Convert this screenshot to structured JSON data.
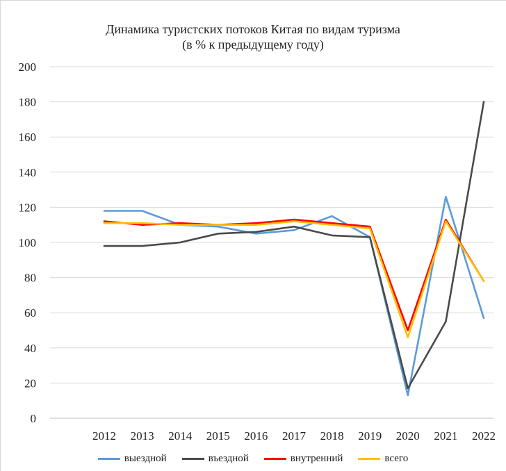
{
  "chart_data": {
    "type": "line",
    "title": "Динамика туристских  потоков Китая по видам туризма",
    "subtitle": "(в % к предыдущему  году)",
    "xlabel": "",
    "ylabel": "",
    "categories": [
      "2012",
      "2013",
      "2014",
      "2015",
      "2016",
      "2017",
      "2018",
      "2019",
      "2020",
      "2021",
      "2022"
    ],
    "ylim": [
      0,
      200
    ],
    "yticks": [
      0,
      20,
      40,
      60,
      80,
      100,
      120,
      140,
      160,
      180,
      200
    ],
    "grid": true,
    "legend_position": "bottom",
    "series": [
      {
        "name": "выездной",
        "color": "#5b9bd5",
        "values": [
          118,
          118,
          110,
          109,
          105,
          107,
          115,
          103,
          13,
          126,
          57
        ]
      },
      {
        "name": "въездной",
        "color": "#4a4a4a",
        "values": [
          98,
          98,
          100,
          105,
          106,
          109,
          104,
          103,
          17,
          55,
          180
        ]
      },
      {
        "name": "внутренний",
        "color": "#ff0000",
        "values": [
          112,
          110,
          111,
          110,
          111,
          113,
          111,
          109,
          50,
          113,
          78
        ]
      },
      {
        "name": "всего",
        "color": "#ffc000",
        "values": [
          111,
          111,
          110,
          110,
          110,
          112,
          110,
          108,
          46,
          112,
          78
        ]
      }
    ]
  }
}
